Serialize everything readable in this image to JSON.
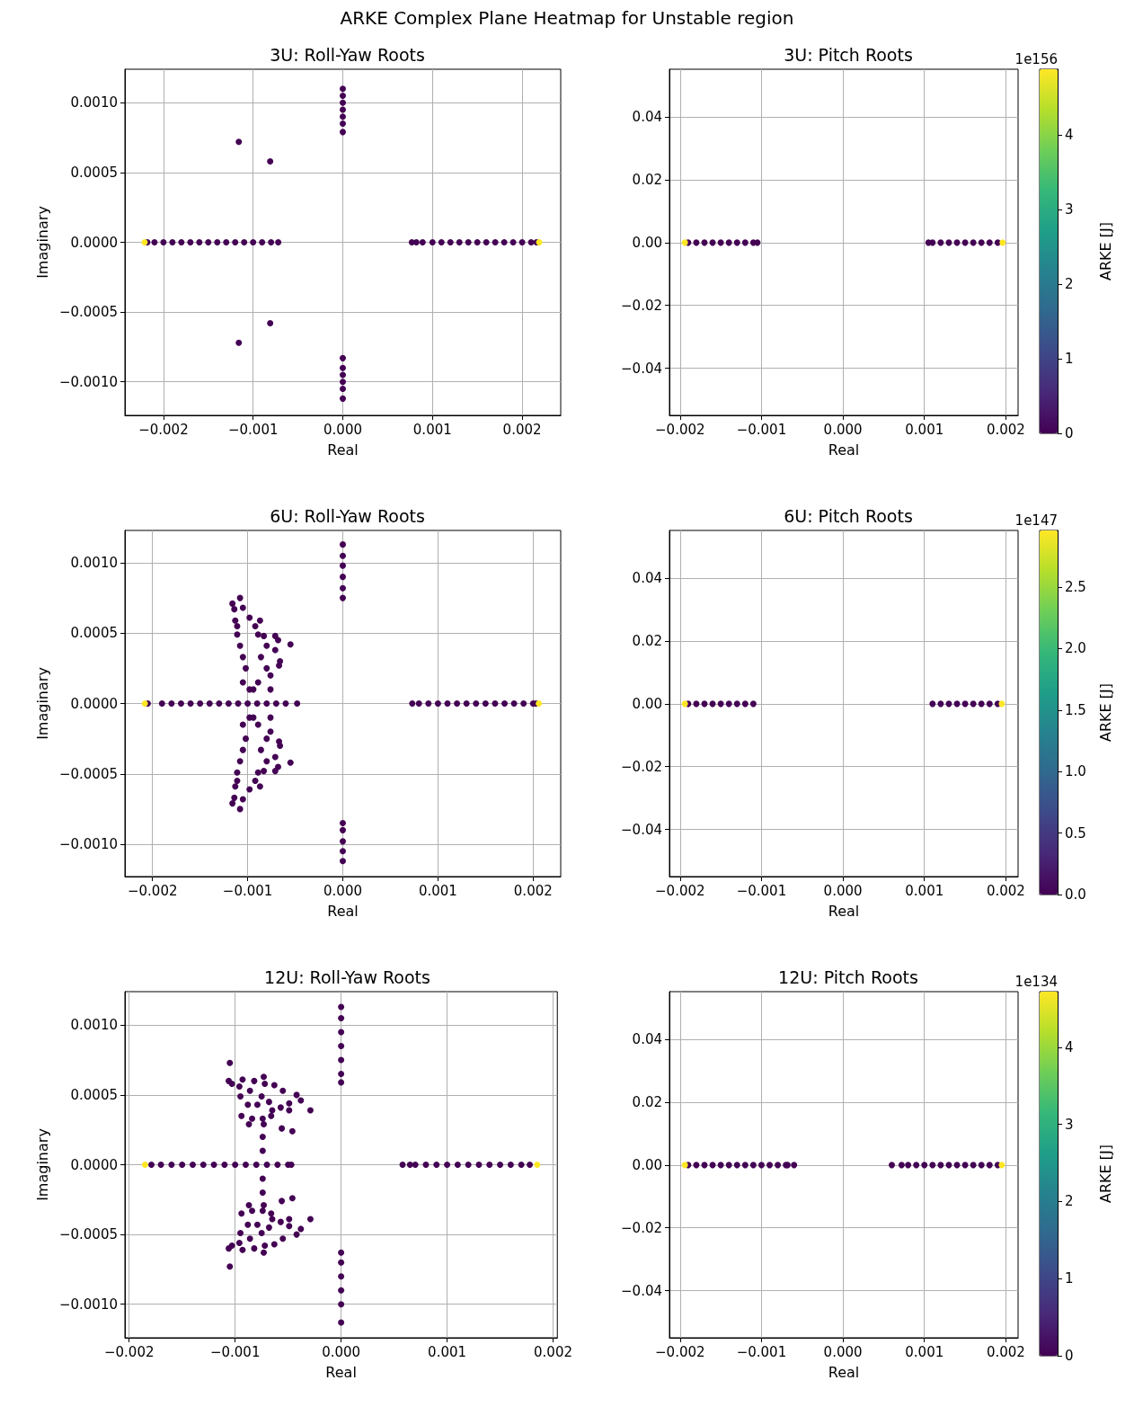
{
  "chart_data": [
    {
      "type": "scatter",
      "title": "3U: Roll-Yaw Roots",
      "xlabel": "Real",
      "ylabel": "Imaginary",
      "annotations": [
        "ARKE Complex Plane Heatmap for Unstable region"
      ],
      "marker": "circle",
      "grid": true,
      "xlim": [
        -0.00243,
        0.00243
      ],
      "ylim": [
        -0.00124,
        0.00124
      ],
      "xticks": [
        {
          "value": -0.002,
          "label": "−0.002"
        },
        {
          "value": -0.001,
          "label": "−0.001"
        },
        {
          "value": 0,
          "label": "0.000"
        },
        {
          "value": 0.001,
          "label": "0.001"
        },
        {
          "value": 0.002,
          "label": "0.002"
        }
      ],
      "yticks": [
        {
          "value": -0.001,
          "label": "−0.0010"
        },
        {
          "value": -0.0005,
          "label": "−0.0005"
        },
        {
          "value": 0,
          "label": "0.0000"
        },
        {
          "value": 0.0005,
          "label": "0.0005"
        },
        {
          "value": 0.001,
          "label": "0.0010"
        }
      ],
      "series": [
        {
          "color": "#440154",
          "x": [
            -0.00218,
            -0.0021,
            -0.002,
            -0.0019,
            -0.0018,
            -0.0017,
            -0.0016,
            -0.0015,
            -0.0014,
            -0.0013,
            -0.0012,
            -0.0011,
            -0.001,
            -0.0009,
            -0.0008,
            -0.00072
          ],
          "values": [
            0,
            0,
            0,
            0,
            0,
            0,
            0,
            0,
            0,
            0,
            0,
            0,
            0,
            0,
            0,
            0
          ]
        },
        {
          "color": "#440154",
          "x": [
            0.00077,
            0.00082,
            0.00089,
            0.001,
            0.0011,
            0.0012,
            0.0013,
            0.0014,
            0.0015,
            0.0016,
            0.0017,
            0.0018,
            0.0019,
            0.002,
            0.0021,
            0.00216
          ],
          "values": [
            0,
            0,
            0,
            0,
            0,
            0,
            0,
            0,
            0,
            0,
            0,
            0,
            0,
            0,
            0,
            0
          ]
        },
        {
          "color": "#440154",
          "x": [
            0,
            0,
            0,
            0,
            0,
            0,
            0,
            0,
            0,
            0,
            0,
            0,
            0
          ],
          "values": [
            0.0011,
            0.00105,
            0.001,
            0.00095,
            0.0009,
            0.00085,
            0.00079,
            -0.00083,
            -0.0009,
            -0.00095,
            -0.001,
            -0.00105,
            -0.00112
          ]
        },
        {
          "color": "#440154",
          "x": [
            -0.00116,
            -0.00081,
            -0.00116,
            -0.00081
          ],
          "values": [
            0.00072,
            0.00058,
            -0.00072,
            -0.00058
          ]
        },
        {
          "color": "#fde725",
          "x": [
            -0.00221,
            0.00219
          ],
          "values": [
            0,
            0
          ]
        }
      ]
    },
    {
      "type": "scatter",
      "title": "3U: Pitch Roots",
      "xlabel": "Real",
      "clabel": "ARKE [J]",
      "annotations": [
        "1e156"
      ],
      "marker": "circle",
      "grid": true,
      "xlim": [
        -0.00213,
        0.00215
      ],
      "ylim": [
        -0.055,
        0.0552
      ],
      "xticks": [
        {
          "value": -0.002,
          "label": "−0.002"
        },
        {
          "value": -0.001,
          "label": "−0.001"
        },
        {
          "value": 0,
          "label": "0.000"
        },
        {
          "value": 0.001,
          "label": "0.001"
        },
        {
          "value": 0.002,
          "label": "0.002"
        }
      ],
      "yticks": [
        {
          "value": -0.04,
          "label": "−0.04"
        },
        {
          "value": -0.02,
          "label": "−0.02"
        },
        {
          "value": 0,
          "label": "0.00"
        },
        {
          "value": 0.02,
          "label": "0.02"
        },
        {
          "value": 0.04,
          "label": "0.04"
        }
      ],
      "clim": [
        0,
        4.88
      ],
      "cticks": [
        0,
        1,
        2,
        3,
        4
      ],
      "series": [
        {
          "x": [
            -0.0019,
            -0.0018,
            -0.0017,
            -0.0016,
            -0.0015,
            -0.0014,
            -0.0013,
            -0.0012,
            -0.0011,
            -0.00105
          ],
          "values": [
            0,
            0,
            0,
            0,
            0,
            0,
            0,
            0,
            0,
            0
          ],
          "cvalues": [
            0,
            0,
            0,
            0,
            0,
            0,
            0,
            0,
            0,
            0
          ]
        },
        {
          "x": [
            0.00105,
            0.0011,
            0.0012,
            0.0013,
            0.0014,
            0.0015,
            0.0016,
            0.0017,
            0.0018,
            0.0019
          ],
          "values": [
            0,
            0,
            0,
            0,
            0,
            0,
            0,
            0,
            0,
            0
          ],
          "cvalues": [
            0,
            0,
            0,
            0,
            0,
            0,
            0,
            0,
            0,
            0
          ]
        },
        {
          "x": [
            -0.00194,
            0.00196
          ],
          "values": [
            0,
            0
          ],
          "cvalues": [
            4.88,
            4.88
          ]
        }
      ]
    },
    {
      "type": "scatter",
      "title": "6U: Roll-Yaw Roots",
      "xlabel": "Real",
      "ylabel": "Imaginary",
      "marker": "circle",
      "grid": true,
      "xlim": [
        -0.00229,
        0.00229
      ],
      "ylim": [
        -0.00123,
        0.00123
      ],
      "xticks": [
        {
          "value": -0.002,
          "label": "−0.002"
        },
        {
          "value": -0.001,
          "label": "−0.001"
        },
        {
          "value": 0,
          "label": "0.000"
        },
        {
          "value": 0.001,
          "label": "0.001"
        },
        {
          "value": 0.002,
          "label": "0.002"
        }
      ],
      "yticks": [
        {
          "value": -0.001,
          "label": "−0.0010"
        },
        {
          "value": -0.0005,
          "label": "−0.0005"
        },
        {
          "value": 0,
          "label": "0.0000"
        },
        {
          "value": 0.0005,
          "label": "0.0005"
        },
        {
          "value": 0.001,
          "label": "0.0010"
        }
      ],
      "series": [
        {
          "color": "#440154",
          "x": [
            -0.00205,
            -0.0019,
            -0.0018,
            -0.0017,
            -0.0016,
            -0.0015,
            -0.0014,
            -0.0013,
            -0.0012,
            -0.0011,
            -0.001,
            -0.0009,
            -0.0008,
            -0.0007,
            -0.0006,
            -0.00048
          ],
          "values": [
            0,
            0,
            0,
            0,
            0,
            0,
            0,
            0,
            0,
            0,
            0,
            0,
            0,
            0,
            0,
            0
          ]
        },
        {
          "color": "#440154",
          "x": [
            0.00073,
            0.0008,
            0.0009,
            0.001,
            0.0011,
            0.0012,
            0.0013,
            0.0014,
            0.0015,
            0.0016,
            0.0017,
            0.0018,
            0.0019,
            0.002,
            0.00203
          ],
          "values": [
            0,
            0,
            0,
            0,
            0,
            0,
            0,
            0,
            0,
            0,
            0,
            0,
            0,
            0,
            0
          ]
        },
        {
          "color": "#440154",
          "x": [
            0,
            0,
            0,
            0,
            0,
            0,
            0,
            0,
            0,
            0,
            0
          ],
          "values": [
            0.00113,
            0.00105,
            0.00098,
            0.0009,
            0.00082,
            0.00075,
            -0.00085,
            -0.0009,
            -0.00098,
            -0.00105,
            -0.00112
          ]
        },
        {
          "color": "#440154",
          "x": [
            -0.00108,
            -0.00116,
            -0.00114,
            -0.00105,
            -0.00113,
            -0.00098,
            -0.00087,
            -0.00111,
            -0.00089,
            -0.00083,
            -0.00071,
            -0.00068,
            -0.00055,
            -0.00108,
            -0.0008,
            -0.00071,
            -0.00105,
            -0.00086,
            -0.00066,
            -0.00067,
            -0.00102,
            -0.0008,
            -0.00076,
            -0.00105,
            -0.00089,
            -0.00076,
            -0.00098,
            -0.00094,
            -0.00111,
            -0.00092
          ],
          "values": [
            0.00075,
            0.00071,
            0.00067,
            0.00068,
            0.00059,
            0.00061,
            0.00059,
            0.00049,
            0.00049,
            0.00048,
            0.00048,
            0.00045,
            0.00042,
            0.00041,
            0.00041,
            0.00038,
            0.00033,
            0.00033,
            0.0003,
            0.00027,
            0.00025,
            0.00025,
            0.0002,
            0.00015,
            0.00015,
            0.0001,
            0.0001,
            0.0001,
            0.00055,
            0.00055
          ]
        },
        {
          "color": "#440154",
          "x": [
            -0.00108,
            -0.00116,
            -0.00114,
            -0.00105,
            -0.00113,
            -0.00098,
            -0.00087,
            -0.00111,
            -0.00089,
            -0.00083,
            -0.00071,
            -0.00068,
            -0.00055,
            -0.00108,
            -0.0008,
            -0.00071,
            -0.00105,
            -0.00086,
            -0.00066,
            -0.00067,
            -0.00102,
            -0.0008,
            -0.00076,
            -0.00105,
            -0.00089,
            -0.00076,
            -0.00098,
            -0.00094,
            -0.00111,
            -0.00092
          ],
          "values": [
            -0.00075,
            -0.00071,
            -0.00067,
            -0.00068,
            -0.00059,
            -0.00061,
            -0.00059,
            -0.00049,
            -0.00049,
            -0.00048,
            -0.00048,
            -0.00045,
            -0.00042,
            -0.00041,
            -0.00041,
            -0.00038,
            -0.00033,
            -0.00033,
            -0.0003,
            -0.00027,
            -0.00025,
            -0.00025,
            -0.0002,
            -0.00015,
            -0.00015,
            -0.0001,
            -0.0001,
            -0.0001,
            -0.00055,
            -0.00055
          ]
        },
        {
          "color": "#fde725",
          "x": [
            -0.00208,
            0.00206
          ],
          "values": [
            0,
            0
          ]
        }
      ]
    },
    {
      "type": "scatter",
      "title": "6U: Pitch Roots",
      "xlabel": "Real",
      "clabel": "ARKE [J]",
      "annotations": [
        "1e147"
      ],
      "marker": "circle",
      "grid": true,
      "xlim": [
        -0.00213,
        0.00215
      ],
      "ylim": [
        -0.055,
        0.0552
      ],
      "xticks": [
        {
          "value": -0.002,
          "label": "−0.002"
        },
        {
          "value": -0.001,
          "label": "−0.001"
        },
        {
          "value": 0,
          "label": "0.000"
        },
        {
          "value": 0.001,
          "label": "0.001"
        },
        {
          "value": 0.002,
          "label": "0.002"
        }
      ],
      "yticks": [
        {
          "value": -0.04,
          "label": "−0.04"
        },
        {
          "value": -0.02,
          "label": "−0.02"
        },
        {
          "value": 0,
          "label": "0.00"
        },
        {
          "value": 0.02,
          "label": "0.02"
        },
        {
          "value": 0.04,
          "label": "0.04"
        }
      ],
      "clim": [
        0,
        2.96
      ],
      "cticks": [
        {
          "value": 0,
          "label": "0.0"
        },
        0.5,
        {
          "value": 1,
          "label": "1.0"
        },
        1.5,
        {
          "value": 2,
          "label": "2.0"
        },
        2.5
      ],
      "series": [
        {
          "x": [
            -0.0019,
            -0.0018,
            -0.0017,
            -0.0016,
            -0.0015,
            -0.0014,
            -0.0013,
            -0.0012,
            -0.0011
          ],
          "values": [
            0,
            0,
            0,
            0,
            0,
            0,
            0,
            0,
            0
          ],
          "cvalues": [
            0,
            0,
            0,
            0,
            0,
            0,
            0,
            0,
            0
          ]
        },
        {
          "x": [
            0.0011,
            0.0012,
            0.0013,
            0.0014,
            0.0015,
            0.0016,
            0.0017,
            0.0018,
            0.0019
          ],
          "values": [
            0,
            0,
            0,
            0,
            0,
            0,
            0,
            0,
            0
          ],
          "cvalues": [
            0,
            0,
            0,
            0,
            0,
            0,
            0,
            0,
            0
          ]
        },
        {
          "x": [
            -0.00194,
            0.00195
          ],
          "values": [
            0,
            0
          ],
          "cvalues": [
            2.96,
            2.96
          ]
        }
      ]
    },
    {
      "type": "scatter",
      "title": "12U: Roll-Yaw Roots",
      "xlabel": "Real",
      "ylabel": "Imaginary",
      "marker": "circle",
      "grid": true,
      "xlim": [
        -0.00204,
        0.00204
      ],
      "ylim": [
        -0.00124,
        0.00124
      ],
      "xticks": [
        {
          "value": -0.002,
          "label": "−0.002"
        },
        {
          "value": -0.001,
          "label": "−0.001"
        },
        {
          "value": 0,
          "label": "0.000"
        },
        {
          "value": 0.001,
          "label": "0.001"
        },
        {
          "value": 0.002,
          "label": "0.002"
        }
      ],
      "yticks": [
        {
          "value": -0.001,
          "label": "−0.0010"
        },
        {
          "value": -0.0005,
          "label": "−0.0005"
        },
        {
          "value": 0,
          "label": "0.0000"
        },
        {
          "value": 0.0005,
          "label": "0.0005"
        },
        {
          "value": 0.001,
          "label": "0.0010"
        }
      ],
      "series": [
        {
          "color": "#440154",
          "x": [
            -0.00179,
            -0.0017,
            -0.0016,
            -0.0015,
            -0.0014,
            -0.0013,
            -0.0012,
            -0.0011,
            -0.001,
            -0.0009,
            -0.0008,
            -0.0007,
            -0.0006,
            -0.0005,
            -0.00047
          ],
          "values": [
            0,
            0,
            0,
            0,
            0,
            0,
            0,
            0,
            0,
            0,
            0,
            0,
            0,
            0,
            0
          ]
        },
        {
          "color": "#440154",
          "x": [
            0.00058,
            0.00065,
            0.0007,
            0.0008,
            0.0009,
            0.001,
            0.0011,
            0.0012,
            0.0013,
            0.0014,
            0.0015,
            0.0016,
            0.0017,
            0.00178
          ],
          "values": [
            0,
            0,
            0,
            0,
            0,
            0,
            0,
            0,
            0,
            0,
            0,
            0,
            0,
            0
          ]
        },
        {
          "color": "#440154",
          "x": [
            0,
            0,
            0,
            0,
            0,
            0,
            0,
            0,
            0,
            0,
            0,
            0,
            0
          ],
          "values": [
            0.00113,
            0.00105,
            0.00095,
            0.00085,
            0.00075,
            0.00065,
            0.00059,
            -0.00063,
            -0.0007,
            -0.0008,
            -0.0009,
            -0.001,
            -0.00113
          ]
        },
        {
          "color": "#440154",
          "x": [
            -0.00105,
            -0.00106,
            -0.00103,
            -0.00096,
            -0.00093,
            -0.00082,
            -0.00073,
            -0.00072,
            -0.00063,
            -0.00055,
            -0.00042,
            -0.00038,
            -0.00029,
            -0.00095,
            -0.00086,
            -0.00075,
            -0.00068,
            -0.00088,
            -0.00079,
            -0.00065,
            -0.00057,
            -0.00049,
            -0.00049,
            -0.00094,
            -0.00084,
            -0.00074,
            -0.00066,
            -0.00087,
            -0.00073,
            -0.00056,
            -0.00046,
            -0.00074,
            -0.00074
          ],
          "values": [
            0.00073,
            0.0006,
            0.00058,
            0.00056,
            0.00061,
            0.0006,
            0.00063,
            0.00058,
            0.00057,
            0.00053,
            0.0005,
            0.00046,
            0.00039,
            0.00049,
            0.00053,
            0.00049,
            0.00045,
            0.00043,
            0.00043,
            0.00039,
            0.00041,
            0.00044,
            0.00039,
            0.00035,
            0.00033,
            0.00033,
            0.00035,
            0.00029,
            0.00029,
            0.00026,
            0.00024,
            0.0002,
            0.0001
          ]
        },
        {
          "color": "#440154",
          "x": [
            -0.00105,
            -0.00106,
            -0.00103,
            -0.00096,
            -0.00093,
            -0.00082,
            -0.00073,
            -0.00072,
            -0.00063,
            -0.00055,
            -0.00042,
            -0.00038,
            -0.00029,
            -0.00095,
            -0.00086,
            -0.00075,
            -0.00068,
            -0.00088,
            -0.00079,
            -0.00065,
            -0.00057,
            -0.00049,
            -0.00049,
            -0.00094,
            -0.00084,
            -0.00074,
            -0.00066,
            -0.00087,
            -0.00073,
            -0.00056,
            -0.00046,
            -0.00074,
            -0.00074
          ],
          "values": [
            -0.00073,
            -0.0006,
            -0.00058,
            -0.00056,
            -0.00061,
            -0.0006,
            -0.00063,
            -0.00058,
            -0.00057,
            -0.00053,
            -0.0005,
            -0.00046,
            -0.00039,
            -0.00049,
            -0.00053,
            -0.00049,
            -0.00045,
            -0.00043,
            -0.00043,
            -0.00039,
            -0.00041,
            -0.00044,
            -0.00039,
            -0.00035,
            -0.00033,
            -0.00033,
            -0.00035,
            -0.00029,
            -0.00029,
            -0.00026,
            -0.00024,
            -0.0002,
            -0.0001
          ]
        },
        {
          "color": "#fde725",
          "x": [
            -0.00185,
            0.00185
          ],
          "values": [
            0,
            0
          ]
        }
      ]
    },
    {
      "type": "scatter",
      "title": "12U: Pitch Roots",
      "xlabel": "Real",
      "clabel": "ARKE [J]",
      "annotations": [
        "1e134"
      ],
      "marker": "circle",
      "grid": true,
      "xlim": [
        -0.00213,
        0.00215
      ],
      "ylim": [
        -0.055,
        0.0552
      ],
      "xticks": [
        {
          "value": -0.002,
          "label": "−0.002"
        },
        {
          "value": -0.001,
          "label": "−0.001"
        },
        {
          "value": 0,
          "label": "0.000"
        },
        {
          "value": 0.001,
          "label": "0.001"
        },
        {
          "value": 0.002,
          "label": "0.002"
        }
      ],
      "yticks": [
        {
          "value": -0.04,
          "label": "−0.04"
        },
        {
          "value": -0.02,
          "label": "−0.02"
        },
        {
          "value": 0,
          "label": "0.00"
        },
        {
          "value": 0.02,
          "label": "0.02"
        },
        {
          "value": 0.04,
          "label": "0.04"
        }
      ],
      "clim": [
        0,
        4.72
      ],
      "cticks": [
        0,
        1,
        2,
        3,
        4
      ],
      "series": [
        {
          "x": [
            -0.0019,
            -0.0018,
            -0.0017,
            -0.0016,
            -0.0015,
            -0.0014,
            -0.0013,
            -0.0012,
            -0.0011,
            -0.001,
            -0.0009,
            -0.0008,
            -0.0007,
            -0.00068,
            -0.0006
          ],
          "values": [
            0,
            0,
            0,
            0,
            0,
            0,
            0,
            0,
            0,
            0,
            0,
            0,
            0,
            0,
            0
          ],
          "cvalues": [
            0,
            0,
            0,
            0,
            0,
            0,
            0,
            0,
            0,
            0,
            0,
            0,
            0,
            0,
            0
          ]
        },
        {
          "x": [
            0.0006,
            0.00072,
            0.0008,
            0.0009,
            0.001,
            0.0011,
            0.0012,
            0.0013,
            0.0014,
            0.0015,
            0.0016,
            0.0017,
            0.0018,
            0.0019
          ],
          "values": [
            0,
            0,
            0,
            0,
            0,
            0,
            0,
            0,
            0,
            0,
            0,
            0,
            0,
            0
          ],
          "cvalues": [
            0,
            0,
            0,
            0,
            0,
            0,
            0,
            0,
            0,
            0,
            0,
            0,
            0,
            0
          ]
        },
        {
          "x": [
            -0.00194,
            0.00195
          ],
          "values": [
            0,
            0
          ],
          "cvalues": [
            4.72,
            4.72
          ]
        }
      ]
    }
  ]
}
